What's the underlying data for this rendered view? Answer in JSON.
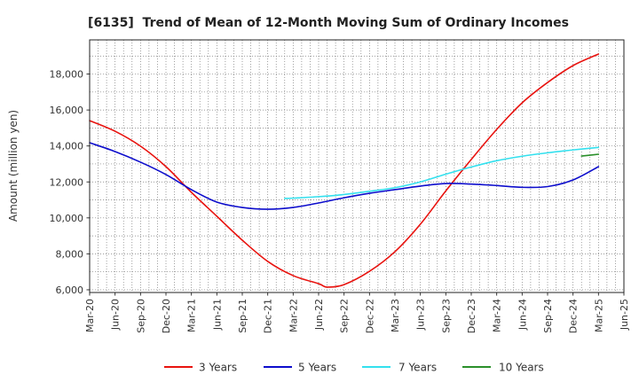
{
  "chart_data": {
    "type": "line",
    "title": "[6135]  Trend of Mean of 12-Month Moving Sum of Ordinary Incomes",
    "ylabel": "Amount (million yen)",
    "xlim": [
      0,
      63
    ],
    "ylim": [
      5850,
      19900
    ],
    "xtick_step_months": 3,
    "xticks": [
      "Mar-20",
      "Jun-20",
      "Sep-20",
      "Dec-20",
      "Mar-21",
      "Jun-21",
      "Sep-21",
      "Dec-21",
      "Mar-22",
      "Jun-22",
      "Sep-22",
      "Dec-22",
      "Mar-23",
      "Jun-23",
      "Sep-23",
      "Dec-23",
      "Mar-24",
      "Jun-24",
      "Sep-24",
      "Dec-24",
      "Mar-25",
      "Jun-25"
    ],
    "yticks": [
      6000,
      8000,
      10000,
      12000,
      14000,
      16000,
      18000
    ],
    "ytick_labels": [
      "6,000",
      "8,000",
      "10,000",
      "12,000",
      "14,000",
      "16,000",
      "18,000"
    ],
    "grid": true,
    "grid_x_step_months": 1,
    "grid_y_step": 1000,
    "legend": "bottom",
    "series": [
      {
        "name": "3 Years",
        "color": "#e8130f",
        "x": [
          0,
          3,
          6,
          9,
          12,
          15,
          18,
          21,
          24,
          27,
          28,
          30,
          33,
          36,
          39,
          42,
          45,
          48,
          51,
          54,
          57,
          60
        ],
        "values": [
          15410,
          14820,
          13990,
          12850,
          11420,
          10090,
          8760,
          7580,
          6790,
          6340,
          6150,
          6290,
          7030,
          8120,
          9650,
          11500,
          13250,
          14920,
          16400,
          17530,
          18470,
          19110
        ]
      },
      {
        "name": "5 Years",
        "color": "#0d0dcc",
        "x": [
          0,
          3,
          6,
          9,
          12,
          15,
          18,
          21,
          24,
          27,
          30,
          33,
          36,
          39,
          42,
          45,
          48,
          51,
          54,
          57,
          60
        ],
        "values": [
          14180,
          13690,
          13100,
          12410,
          11570,
          10880,
          10580,
          10480,
          10580,
          10830,
          11120,
          11370,
          11570,
          11770,
          11910,
          11880,
          11800,
          11700,
          11740,
          12110,
          12850
        ]
      },
      {
        "name": "7 Years",
        "color": "#33e0ee",
        "x": [
          23,
          24,
          27,
          30,
          33,
          36,
          39,
          42,
          45,
          48,
          51,
          54,
          57,
          60
        ],
        "values": [
          11080,
          11100,
          11180,
          11300,
          11480,
          11680,
          12000,
          12430,
          12830,
          13180,
          13430,
          13620,
          13780,
          13920
        ]
      },
      {
        "name": "10 Years",
        "color": "#2a8f2a",
        "x": [
          58,
          59,
          60
        ],
        "values": [
          13440,
          13490,
          13540
        ]
      }
    ]
  }
}
